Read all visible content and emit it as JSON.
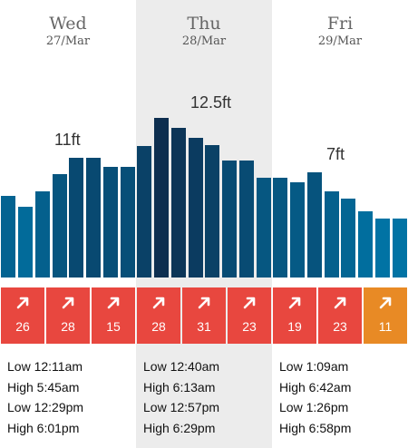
{
  "days": [
    {
      "name": "Wed",
      "date": "27/Mar",
      "peak_label": "11ft",
      "highlight": false,
      "tides": [
        "Low 12:11am",
        "High 5:45am",
        "Low 12:29pm",
        "High 6:01pm"
      ]
    },
    {
      "name": "Thu",
      "date": "28/Mar",
      "peak_label": "12.5ft",
      "highlight": true,
      "tides": [
        "Low 12:40am",
        "High 6:13am",
        "Low 12:57pm",
        "High 6:29pm"
      ]
    },
    {
      "name": "Fri",
      "date": "29/Mar",
      "peak_label": "7ft",
      "highlight": false,
      "tides": [
        "Low 1:09am",
        "High 6:42am",
        "Low 1:26pm",
        "High 6:58pm"
      ]
    }
  ],
  "wave_heights_ft": [
    7.5,
    6.5,
    7.9,
    9.5,
    11.0,
    11.0,
    10.2,
    10.2,
    12.1,
    14.7,
    13.8,
    12.9,
    12.2,
    10.8,
    10.8,
    9.2,
    9.2,
    8.8,
    9.7,
    7.9,
    7.3,
    6.1,
    5.4,
    5.4
  ],
  "wind": [
    {
      "speed": "26",
      "color": "#e8473f"
    },
    {
      "speed": "28",
      "color": "#e8473f"
    },
    {
      "speed": "15",
      "color": "#e8473f"
    },
    {
      "speed": "28",
      "color": "#e8473f"
    },
    {
      "speed": "31",
      "color": "#e8473f"
    },
    {
      "speed": "23",
      "color": "#e8473f"
    },
    {
      "speed": "19",
      "color": "#e8473f"
    },
    {
      "speed": "23",
      "color": "#e8473f"
    },
    {
      "speed": "11",
      "color": "#e88a25"
    }
  ],
  "colors": {
    "highlight_bg": "#ececec",
    "bar_dark": "#0d2e4f",
    "bar_light": "#0076a8"
  },
  "icons": {
    "wind": "wind-direction-arrow-icon"
  }
}
